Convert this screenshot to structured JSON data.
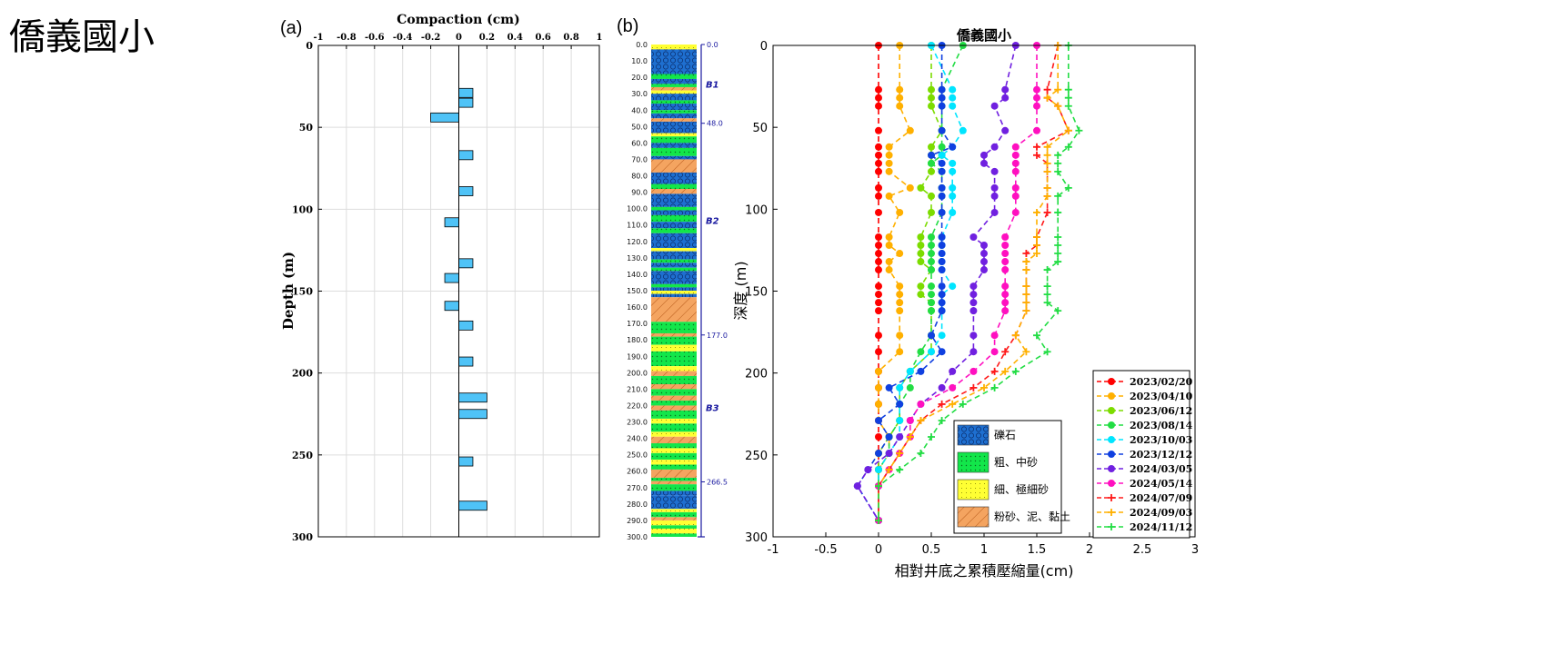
{
  "page_title": "僑義國小",
  "panel_labels": {
    "a": "(a)",
    "b": "(b)"
  },
  "chart_data": [
    {
      "type": "bar",
      "orientation": "horizontal",
      "title": "",
      "xlabel": "Compaction (cm)",
      "ylabel": "Depth (m)",
      "xlim": [
        -1,
        1
      ],
      "ylim": [
        0,
        300
      ],
      "x_ticks": [
        "-1",
        "-0.8",
        "-0.6",
        "-0.4",
        "-0.2",
        "0",
        "0.2",
        "0.4",
        "0.6",
        "0.8",
        "1"
      ],
      "y_ticks": [
        "0",
        "50",
        "100",
        "150",
        "200",
        "250",
        "300"
      ],
      "grid": true,
      "bar_color": "#4fc3f7",
      "bars": [
        {
          "depth": 29,
          "value": 0.1
        },
        {
          "depth": 35,
          "value": 0.1
        },
        {
          "depth": 44,
          "value": -0.2
        },
        {
          "depth": 67,
          "value": 0.1
        },
        {
          "depth": 89,
          "value": 0.1
        },
        {
          "depth": 108,
          "value": -0.1
        },
        {
          "depth": 133,
          "value": 0.1
        },
        {
          "depth": 142,
          "value": -0.1
        },
        {
          "depth": 159,
          "value": -0.1
        },
        {
          "depth": 171,
          "value": 0.1
        },
        {
          "depth": 193,
          "value": 0.1
        },
        {
          "depth": 215,
          "value": 0.2
        },
        {
          "depth": 225,
          "value": 0.2
        },
        {
          "depth": 254,
          "value": 0.1
        },
        {
          "depth": 281,
          "value": 0.2
        }
      ]
    },
    {
      "type": "stratigraphic_column",
      "depth_ticks": [
        "0.0",
        "10.0",
        "20.0",
        "30.0",
        "40.0",
        "50.0",
        "60.0",
        "70.0",
        "80.0",
        "90.0",
        "100.0",
        "110.0",
        "120.0",
        "130.0",
        "140.0",
        "150.0",
        "160.0",
        "170.0",
        "180.0",
        "190.0",
        "200.0",
        "210.0",
        "220.0",
        "230.0",
        "240.0",
        "250.0",
        "260.0",
        "270.0",
        "280.0",
        "290.0",
        "300.0"
      ],
      "boundaries": [
        {
          "depth": 0,
          "label": "0.0"
        },
        {
          "depth": 48,
          "label": "48.0"
        },
        {
          "depth": 177,
          "label": "177.0"
        },
        {
          "depth": 266.5,
          "label": "266.5"
        }
      ],
      "units": [
        {
          "depth": 24,
          "label": "B1"
        },
        {
          "depth": 107,
          "label": "B2"
        },
        {
          "depth": 221,
          "label": "B3"
        }
      ],
      "layers": [
        {
          "top": 0,
          "bottom": 3,
          "kind": "fine"
        },
        {
          "top": 3,
          "bottom": 18,
          "kind": "gravel"
        },
        {
          "top": 18,
          "bottom": 21,
          "kind": "coarse"
        },
        {
          "top": 21,
          "bottom": 24,
          "kind": "gravel"
        },
        {
          "top": 24,
          "bottom": 26,
          "kind": "coarse"
        },
        {
          "top": 26,
          "bottom": 28,
          "kind": "silt"
        },
        {
          "top": 28,
          "bottom": 30,
          "kind": "fine"
        },
        {
          "top": 30,
          "bottom": 34,
          "kind": "gravel"
        },
        {
          "top": 34,
          "bottom": 36,
          "kind": "coarse"
        },
        {
          "top": 36,
          "bottom": 40,
          "kind": "gravel"
        },
        {
          "top": 40,
          "bottom": 42,
          "kind": "coarse"
        },
        {
          "top": 42,
          "bottom": 45,
          "kind": "gravel"
        },
        {
          "top": 45,
          "bottom": 47,
          "kind": "silt"
        },
        {
          "top": 47,
          "bottom": 54,
          "kind": "gravel"
        },
        {
          "top": 54,
          "bottom": 56,
          "kind": "fine"
        },
        {
          "top": 56,
          "bottom": 60,
          "kind": "coarse"
        },
        {
          "top": 60,
          "bottom": 63,
          "kind": "gravel"
        },
        {
          "top": 63,
          "bottom": 68,
          "kind": "coarse"
        },
        {
          "top": 68,
          "bottom": 70,
          "kind": "gravel"
        },
        {
          "top": 70,
          "bottom": 78,
          "kind": "silt"
        },
        {
          "top": 78,
          "bottom": 85,
          "kind": "gravel"
        },
        {
          "top": 85,
          "bottom": 88,
          "kind": "coarse"
        },
        {
          "top": 88,
          "bottom": 91,
          "kind": "silt"
        },
        {
          "top": 91,
          "bottom": 99,
          "kind": "gravel"
        },
        {
          "top": 99,
          "bottom": 101,
          "kind": "coarse"
        },
        {
          "top": 101,
          "bottom": 104,
          "kind": "gravel"
        },
        {
          "top": 104,
          "bottom": 108,
          "kind": "coarse"
        },
        {
          "top": 108,
          "bottom": 112,
          "kind": "gravel"
        },
        {
          "top": 112,
          "bottom": 115,
          "kind": "coarse"
        },
        {
          "top": 115,
          "bottom": 124,
          "kind": "gravel"
        },
        {
          "top": 124,
          "bottom": 126,
          "kind": "fine"
        },
        {
          "top": 126,
          "bottom": 131,
          "kind": "gravel"
        },
        {
          "top": 131,
          "bottom": 133,
          "kind": "coarse"
        },
        {
          "top": 133,
          "bottom": 136,
          "kind": "gravel"
        },
        {
          "top": 136,
          "bottom": 138,
          "kind": "coarse"
        },
        {
          "top": 138,
          "bottom": 146,
          "kind": "gravel"
        },
        {
          "top": 146,
          "bottom": 148,
          "kind": "coarse"
        },
        {
          "top": 148,
          "bottom": 150,
          "kind": "gravel"
        },
        {
          "top": 150,
          "bottom": 152,
          "kind": "fine"
        },
        {
          "top": 152,
          "bottom": 154,
          "kind": "gravel"
        },
        {
          "top": 154,
          "bottom": 169,
          "kind": "silt"
        },
        {
          "top": 169,
          "bottom": 176,
          "kind": "coarse"
        },
        {
          "top": 176,
          "bottom": 178,
          "kind": "silt"
        },
        {
          "top": 178,
          "bottom": 183,
          "kind": "coarse"
        },
        {
          "top": 183,
          "bottom": 187,
          "kind": "fine"
        },
        {
          "top": 187,
          "bottom": 196,
          "kind": "coarse"
        },
        {
          "top": 196,
          "bottom": 199,
          "kind": "fine"
        },
        {
          "top": 199,
          "bottom": 202,
          "kind": "silt"
        },
        {
          "top": 202,
          "bottom": 207,
          "kind": "coarse"
        },
        {
          "top": 207,
          "bottom": 210,
          "kind": "silt"
        },
        {
          "top": 210,
          "bottom": 214,
          "kind": "coarse"
        },
        {
          "top": 214,
          "bottom": 217,
          "kind": "silt"
        },
        {
          "top": 217,
          "bottom": 220,
          "kind": "coarse"
        },
        {
          "top": 220,
          "bottom": 223,
          "kind": "silt"
        },
        {
          "top": 223,
          "bottom": 228,
          "kind": "coarse"
        },
        {
          "top": 228,
          "bottom": 231,
          "kind": "fine"
        },
        {
          "top": 231,
          "bottom": 236,
          "kind": "coarse"
        },
        {
          "top": 236,
          "bottom": 239,
          "kind": "fine"
        },
        {
          "top": 239,
          "bottom": 243,
          "kind": "silt"
        },
        {
          "top": 243,
          "bottom": 246,
          "kind": "coarse"
        },
        {
          "top": 246,
          "bottom": 249,
          "kind": "fine"
        },
        {
          "top": 249,
          "bottom": 253,
          "kind": "coarse"
        },
        {
          "top": 253,
          "bottom": 256,
          "kind": "fine"
        },
        {
          "top": 256,
          "bottom": 259,
          "kind": "coarse"
        },
        {
          "top": 259,
          "bottom": 264,
          "kind": "silt"
        },
        {
          "top": 264,
          "bottom": 266,
          "kind": "coarse"
        },
        {
          "top": 266,
          "bottom": 268,
          "kind": "silt"
        },
        {
          "top": 268,
          "bottom": 272,
          "kind": "coarse"
        },
        {
          "top": 272,
          "bottom": 275,
          "kind": "gravel"
        },
        {
          "top": 275,
          "bottom": 283,
          "kind": "gravel"
        },
        {
          "top": 283,
          "bottom": 285,
          "kind": "fine"
        },
        {
          "top": 285,
          "bottom": 288,
          "kind": "coarse"
        },
        {
          "top": 288,
          "bottom": 290,
          "kind": "silt"
        },
        {
          "top": 290,
          "bottom": 293,
          "kind": "fine"
        },
        {
          "top": 293,
          "bottom": 295,
          "kind": "coarse"
        },
        {
          "top": 295,
          "bottom": 298,
          "kind": "fine"
        },
        {
          "top": 298,
          "bottom": 300,
          "kind": "coarse"
        }
      ],
      "legend": [
        {
          "kind": "gravel",
          "label": "礫石"
        },
        {
          "kind": "coarse",
          "label": "粗、中砂"
        },
        {
          "kind": "fine",
          "label": "細、極細砂"
        },
        {
          "kind": "silt",
          "label": "粉砂、泥、黏土"
        }
      ]
    },
    {
      "type": "line",
      "title": "僑義國小",
      "xlabel": "相對井底之累積壓縮量(cm)",
      "ylabel": "深度 (m)",
      "xlim": [
        -1,
        3
      ],
      "ylim": [
        0,
        300
      ],
      "x_ticks": [
        "-1",
        "-0.5",
        "0",
        "0.5",
        "1",
        "1.5",
        "2",
        "2.5",
        "3"
      ],
      "y_ticks": [
        "0",
        "50",
        "100",
        "150",
        "200",
        "250",
        "300"
      ],
      "grid": false,
      "legend_position": "bottom-right",
      "depths": [
        0,
        27,
        32,
        37,
        52,
        62,
        67,
        72,
        77,
        87,
        92,
        102,
        117,
        122,
        127,
        132,
        137,
        147,
        152,
        157,
        162,
        177,
        187,
        199,
        209,
        219,
        229,
        239,
        249,
        259,
        269,
        290
      ],
      "series": [
        {
          "name": "2023/02/20",
          "color": "#ff0000",
          "marker": "circle",
          "values": [
            0,
            0,
            0,
            0,
            0,
            0,
            0,
            0,
            0,
            0,
            0,
            0,
            0,
            0,
            0,
            0,
            0,
            0,
            0,
            0,
            0,
            0,
            0,
            0,
            0,
            0,
            0,
            0,
            0,
            0,
            0,
            0
          ]
        },
        {
          "name": "2023/04/10",
          "color": "#ffb000",
          "marker": "circle",
          "values": [
            0.2,
            0.2,
            0.2,
            0.2,
            0.3,
            0.1,
            0.1,
            0.1,
            0.1,
            0.3,
            0.1,
            0.2,
            0.1,
            0.1,
            0.2,
            0.1,
            0.1,
            0.2,
            0.2,
            0.2,
            0.2,
            0.2,
            0.2,
            0,
            0,
            0,
            0,
            0.1,
            0.1,
            0,
            0,
            0
          ]
        },
        {
          "name": "2023/06/12",
          "color": "#7cdc00",
          "marker": "circle",
          "values": [
            0.5,
            0.5,
            0.5,
            0.5,
            0.6,
            0.5,
            0.5,
            0.5,
            0.5,
            0.4,
            0.5,
            0.5,
            0.4,
            0.4,
            0.4,
            0.4,
            0.5,
            0.4,
            0.4,
            0.5,
            0.5,
            0.5,
            0.5,
            0.3,
            0.2,
            0.2,
            0.2,
            0.1,
            0,
            0,
            0,
            0
          ]
        },
        {
          "name": "2023/08/14",
          "color": "#22dd44",
          "marker": "circle",
          "values": [
            0.8,
            0.6,
            0.6,
            0.6,
            0.6,
            0.6,
            0.6,
            0.5,
            0.6,
            0.6,
            0.6,
            0.6,
            0.5,
            0.5,
            0.5,
            0.5,
            0.5,
            0.5,
            0.5,
            0.5,
            0.5,
            0.5,
            0.4,
            0.3,
            0.3,
            0.2,
            0.2,
            0.1,
            0.1,
            0,
            0,
            0
          ]
        },
        {
          "name": "2023/10/03",
          "color": "#00e5ff",
          "marker": "circle",
          "values": [
            0.5,
            0.7,
            0.7,
            0.7,
            0.8,
            0.7,
            0.6,
            0.7,
            0.7,
            0.7,
            0.7,
            0.7,
            0.6,
            0.6,
            0.6,
            0.6,
            0.6,
            0.7,
            0.6,
            0.6,
            0.6,
            0.6,
            0.5,
            0.3,
            0.2,
            0.2,
            0.2,
            0.2,
            0.1,
            0,
            0,
            0
          ]
        },
        {
          "name": "2023/12/12",
          "color": "#1040e0",
          "marker": "circle",
          "values": [
            0.6,
            0.6,
            0.6,
            0.6,
            0.6,
            0.7,
            0.5,
            0.6,
            0.6,
            0.6,
            0.6,
            0.6,
            0.6,
            0.6,
            0.6,
            0.6,
            0.6,
            0.6,
            0.6,
            0.6,
            0.6,
            0.5,
            0.6,
            0.4,
            0.1,
            0.2,
            0,
            0.1,
            0,
            -0.1,
            -0.2,
            0
          ]
        },
        {
          "name": "2024/03/05",
          "color": "#7020e0",
          "marker": "circle",
          "values": [
            1.3,
            1.2,
            1.2,
            1.1,
            1.2,
            1.1,
            1,
            1,
            1.1,
            1.1,
            1.1,
            1.1,
            0.9,
            1,
            1,
            1,
            1,
            0.9,
            0.9,
            0.9,
            0.9,
            0.9,
            0.9,
            0.7,
            0.6,
            0.4,
            0.3,
            0.2,
            0.1,
            -0.1,
            -0.2,
            0
          ]
        },
        {
          "name": "2024/05/14",
          "color": "#ff10c0",
          "marker": "circle",
          "values": [
            1.5,
            1.5,
            1.5,
            1.5,
            1.5,
            1.3,
            1.3,
            1.3,
            1.3,
            1.3,
            1.3,
            1.3,
            1.2,
            1.2,
            1.2,
            1.2,
            1.2,
            1.2,
            1.2,
            1.2,
            1.2,
            1.1,
            1.1,
            0.9,
            0.7,
            0.4,
            0.3,
            0.3,
            0.2,
            0.1,
            0,
            0
          ]
        },
        {
          "name": "2024/07/09",
          "color": "#ff1a1a",
          "marker": "plus",
          "values": [
            1.7,
            1.6,
            1.6,
            1.7,
            1.8,
            1.5,
            1.5,
            1.6,
            1.6,
            1.6,
            1.6,
            1.6,
            1.5,
            1.5,
            1.4,
            1.4,
            1.4,
            1.4,
            1.4,
            1.4,
            1.4,
            1.3,
            1.2,
            1.1,
            0.9,
            0.6,
            0.4,
            0.3,
            0.2,
            0.1,
            0,
            0
          ]
        },
        {
          "name": "2024/09/03",
          "color": "#ffb000",
          "marker": "plus",
          "values": [
            1.7,
            1.7,
            1.6,
            1.7,
            1.8,
            1.6,
            1.6,
            1.6,
            1.6,
            1.6,
            1.6,
            1.5,
            1.5,
            1.5,
            1.5,
            1.4,
            1.4,
            1.4,
            1.4,
            1.4,
            1.4,
            1.3,
            1.4,
            1.2,
            1,
            0.7,
            0.4,
            0.3,
            0.2,
            0.1,
            0,
            0
          ]
        },
        {
          "name": "2024/11/12",
          "color": "#22dd44",
          "marker": "plus",
          "values": [
            1.8,
            1.8,
            1.8,
            1.8,
            1.9,
            1.8,
            1.7,
            1.7,
            1.7,
            1.8,
            1.7,
            1.7,
            1.7,
            1.7,
            1.7,
            1.7,
            1.6,
            1.6,
            1.6,
            1.6,
            1.7,
            1.5,
            1.6,
            1.3,
            1.1,
            0.8,
            0.6,
            0.5,
            0.4,
            0.2,
            0,
            0
          ]
        }
      ]
    }
  ]
}
